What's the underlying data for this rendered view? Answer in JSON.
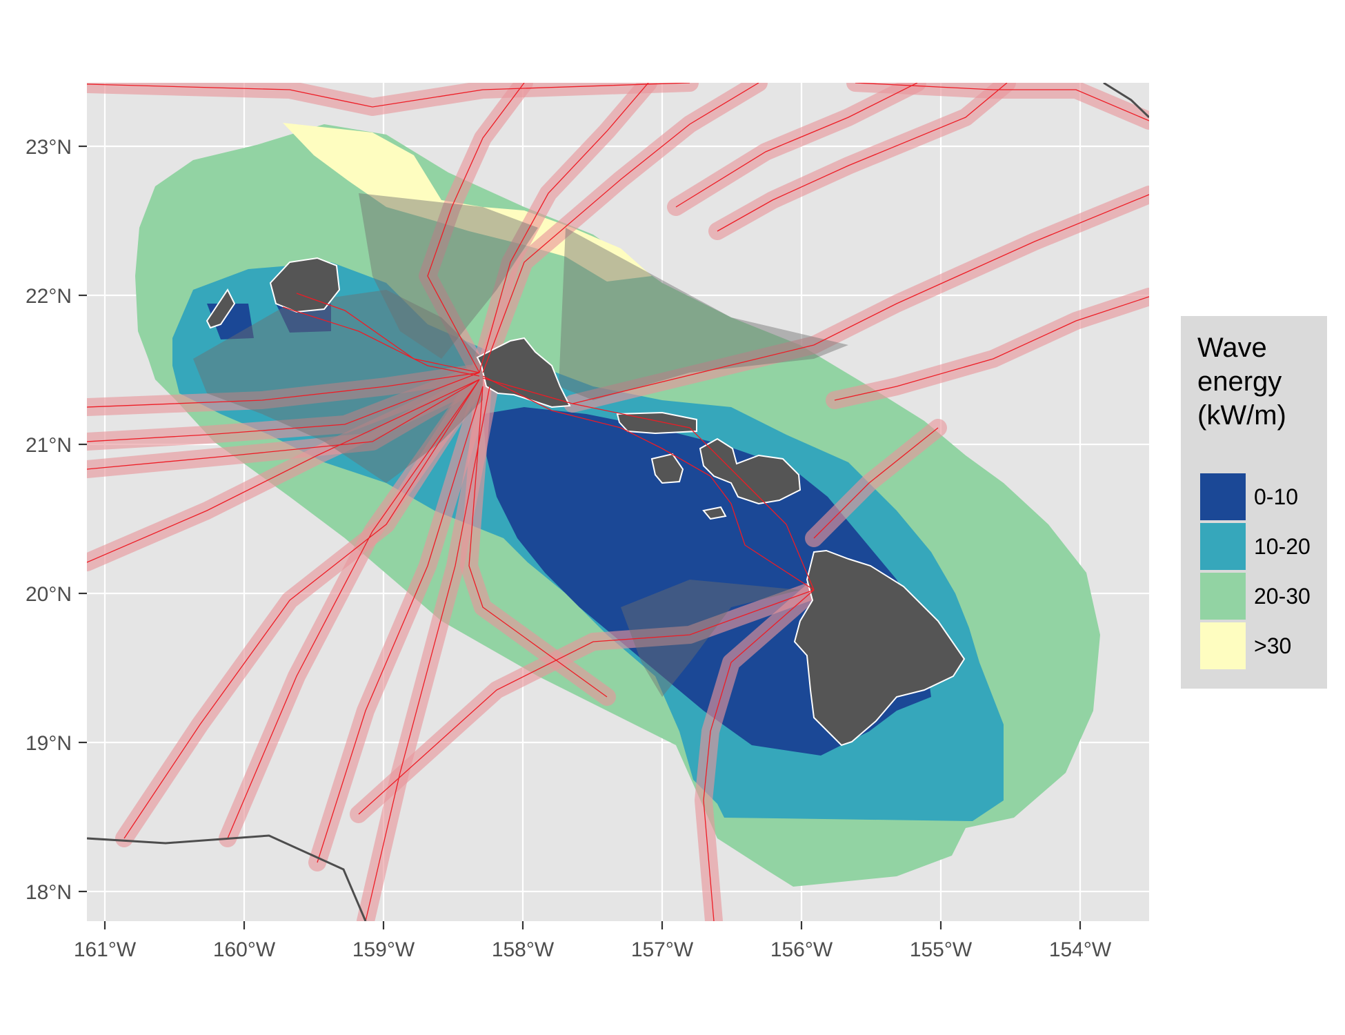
{
  "colors": {
    "panel_background": "#e5e5e5",
    "grid": "#ffffff",
    "land": "#555555",
    "cable_halo": "#e8969b",
    "cable_line": "#ee1c25",
    "boundary": "#4d4d4d",
    "legend_background": "#dadada"
  },
  "map": {
    "region": "Hawaiian Islands",
    "x_range": [
      -161.1,
      -153.5
    ],
    "y_range": [
      17.8,
      23.4
    ],
    "x_ticks": [
      "161°W",
      "160°W",
      "159°W",
      "158°W",
      "157°W",
      "156°W",
      "155°W",
      "154°W"
    ],
    "y_ticks": [
      "23°N",
      "22°N",
      "21°N",
      "20°N",
      "19°N",
      "18°N"
    ]
  },
  "legend": {
    "title_lines": [
      "Wave",
      "energy",
      "(kW/m)"
    ],
    "items": [
      {
        "label": "0-10",
        "color": "#1b4896"
      },
      {
        "label": "10-20",
        "color": "#36a7bb"
      },
      {
        "label": "20-30",
        "color": "#92d3a3"
      },
      {
        "label": ">30",
        "color": "#fefdc0"
      }
    ]
  }
}
